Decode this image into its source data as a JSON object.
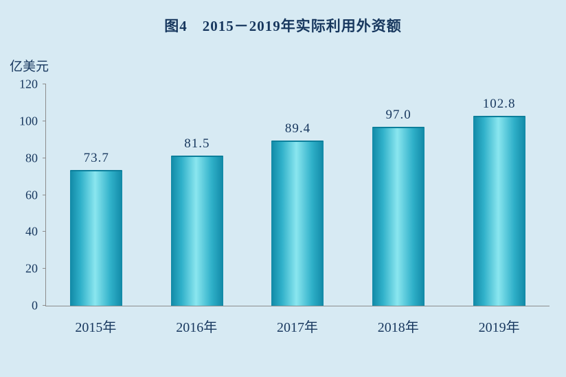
{
  "title": "图4　2015－2019年实际利用外资额",
  "y_axis_unit": "亿美元",
  "chart_data": {
    "type": "bar",
    "title": "图4　2015－2019年实际利用外资额",
    "categories": [
      "2015年",
      "2016年",
      "2017年",
      "2018年",
      "2019年"
    ],
    "values": [
      73.7,
      81.5,
      89.4,
      97.0,
      102.8
    ],
    "value_labels": [
      "73.7",
      "81.5",
      "89.4",
      "97.0",
      "102.8"
    ],
    "xlabel": "",
    "ylabel": "亿美元",
    "ylim": [
      0,
      120
    ],
    "ytick_step": 20,
    "ytick_labels": [
      "0",
      "20",
      "40",
      "60",
      "80",
      "100",
      "120"
    ],
    "grid": false,
    "legend_position": "none"
  },
  "colors": {
    "background": "#d7eaf3",
    "text": "#17375e",
    "bar_dark": "#1189a6",
    "bar_light": "#8ae6ef",
    "axis": "#8c8c8c"
  }
}
